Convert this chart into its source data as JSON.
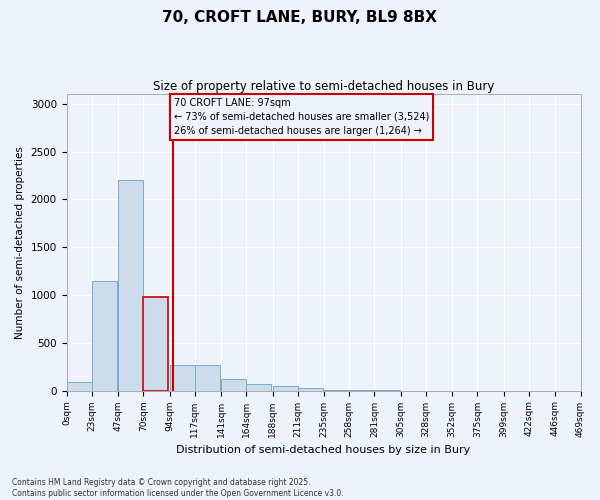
{
  "title_line1": "70, CROFT LANE, BURY, BL9 8BX",
  "title_line2": "Size of property relative to semi-detached houses in Bury",
  "xlabel": "Distribution of semi-detached houses by size in Bury",
  "ylabel": "Number of semi-detached properties",
  "footnote1": "Contains HM Land Registry data © Crown copyright and database right 2025.",
  "footnote2": "Contains public sector information licensed under the Open Government Licence v3.0.",
  "property_label": "70 CROFT LANE: 97sqm",
  "annotation_left": "← 73% of semi-detached houses are smaller (3,524)",
  "annotation_right": "26% of semi-detached houses are larger (1,264) →",
  "bin_labels": [
    "0sqm",
    "23sqm",
    "47sqm",
    "70sqm",
    "94sqm",
    "117sqm",
    "141sqm",
    "164sqm",
    "188sqm",
    "211sqm",
    "235sqm",
    "258sqm",
    "281sqm",
    "305sqm",
    "328sqm",
    "352sqm",
    "375sqm",
    "399sqm",
    "422sqm",
    "446sqm",
    "469sqm"
  ],
  "bin_edges": [
    0,
    23,
    47,
    70,
    94,
    117,
    141,
    164,
    188,
    211,
    235,
    258,
    281,
    305,
    328,
    352,
    375,
    399,
    422,
    446,
    469
  ],
  "bar_values": [
    90,
    1150,
    2200,
    980,
    270,
    270,
    120,
    70,
    50,
    30,
    10,
    5,
    2,
    0,
    0,
    0,
    0,
    0,
    0,
    0
  ],
  "bar_color": "#ccdcec",
  "bar_edge_color": "#7aaac8",
  "highlight_bar_index": 3,
  "highlight_bar_edge_color": "#cc0000",
  "vline_color": "#cc0000",
  "vline_x": 97,
  "annotation_box_color": "#cc0000",
  "bg_color": "#eef2fa",
  "grid_color": "#ffffff",
  "ylim": [
    0,
    3100
  ],
  "yticks": [
    0,
    500,
    1000,
    1500,
    2000,
    2500,
    3000
  ]
}
